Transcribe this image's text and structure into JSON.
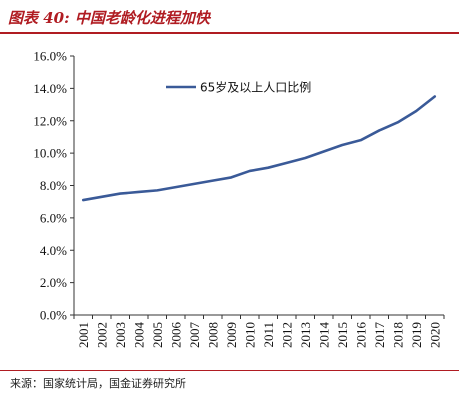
{
  "header": {
    "title": "图表 40:  中国老龄化进程加快"
  },
  "footer": {
    "source": "来源：国家统计局，国金证券研究所"
  },
  "colors": {
    "accent": "#b01c22",
    "line": "#3a5a98",
    "axis": "#333333",
    "text": "#111111"
  },
  "chart_data": {
    "type": "line",
    "title": "",
    "xlabel": "",
    "ylabel": "",
    "x": [
      "2001",
      "2002",
      "2003",
      "2004",
      "2005",
      "2006",
      "2007",
      "2008",
      "2009",
      "2010",
      "2011",
      "2012",
      "2013",
      "2014",
      "2015",
      "2016",
      "2017",
      "2018",
      "2019",
      "2020"
    ],
    "series": [
      {
        "name": "65岁及以上人口比例",
        "values": [
          7.1,
          7.3,
          7.5,
          7.6,
          7.7,
          7.9,
          8.1,
          8.3,
          8.5,
          8.9,
          9.1,
          9.4,
          9.7,
          10.1,
          10.5,
          10.8,
          11.4,
          11.9,
          12.6,
          13.5
        ]
      }
    ],
    "ylim": [
      0,
      16
    ],
    "yticks": [
      "0.0%",
      "2.0%",
      "4.0%",
      "6.0%",
      "8.0%",
      "10.0%",
      "12.0%",
      "14.0%",
      "16.0%"
    ],
    "grid": false,
    "legend_position": "top-center"
  }
}
